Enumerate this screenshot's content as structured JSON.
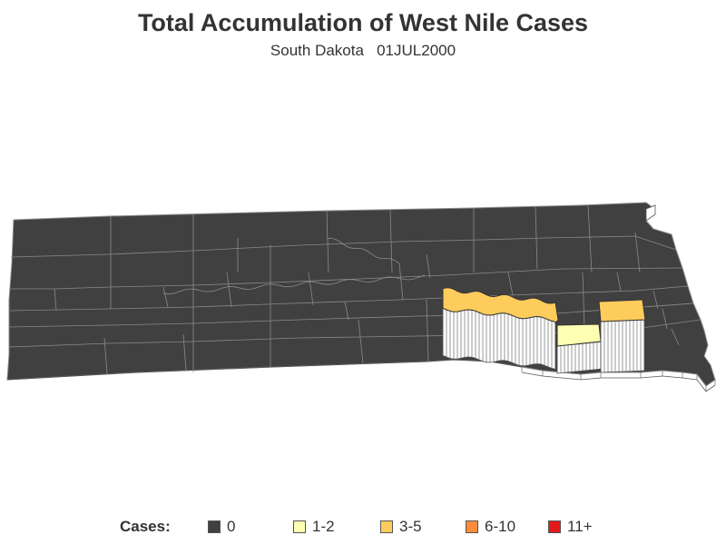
{
  "title": "Total Accumulation of West Nile Cases",
  "subtitle": "South Dakota   01JUL2000",
  "legend": {
    "title": "Cases:",
    "items": [
      {
        "label": "0",
        "color": "#404040"
      },
      {
        "label": "1-2",
        "color": "#FFFFB2"
      },
      {
        "label": "3-5",
        "color": "#FECC5C"
      },
      {
        "label": "6-10",
        "color": "#FD8D3C"
      },
      {
        "label": "11+",
        "color": "#E31A1C"
      }
    ]
  },
  "map": {
    "base_color": "#404040",
    "border_color": "#8a8a8a",
    "wall_color": "#ffffff",
    "wall_line_color": "#555555"
  }
}
